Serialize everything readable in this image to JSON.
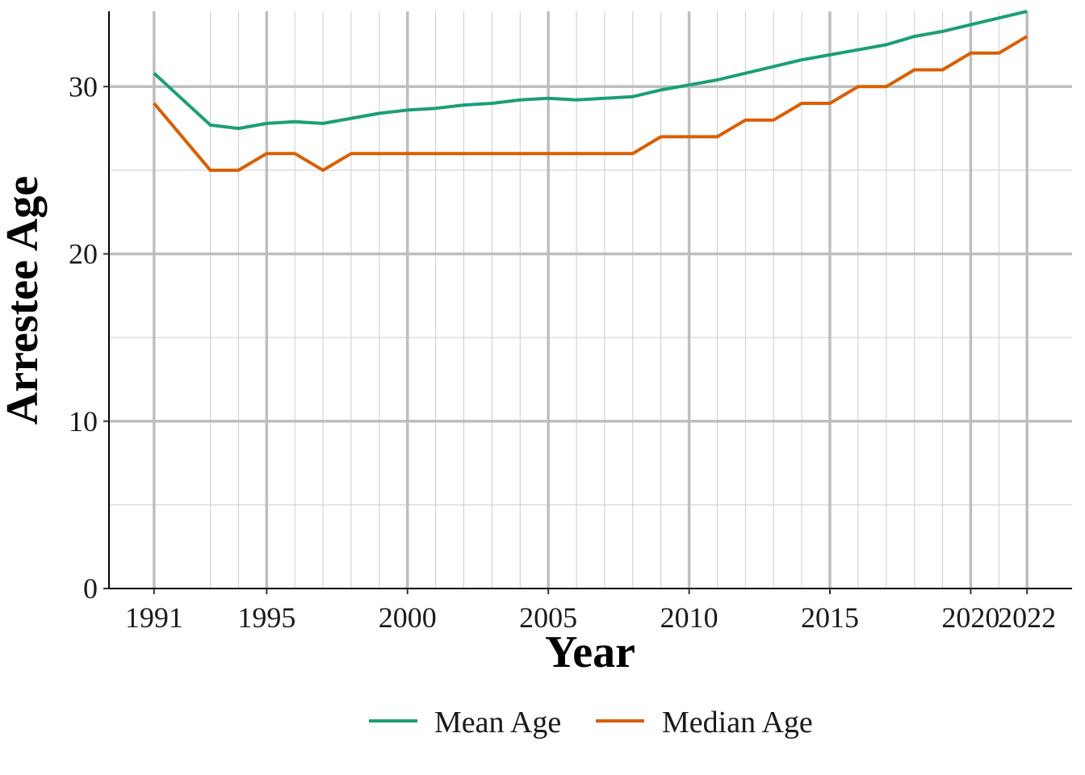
{
  "chart_data": {
    "type": "line",
    "title": "",
    "xlabel": "Year",
    "ylabel": "Arrestee Age",
    "x": [
      1991,
      1993,
      1994,
      1995,
      1996,
      1997,
      1998,
      1999,
      2000,
      2001,
      2002,
      2003,
      2004,
      2005,
      2006,
      2007,
      2008,
      2009,
      2010,
      2011,
      2012,
      2013,
      2014,
      2015,
      2016,
      2017,
      2018,
      2019,
      2020,
      2021,
      2022
    ],
    "series": [
      {
        "name": "Mean Age",
        "color": "#1b9e77",
        "values": [
          30.8,
          27.7,
          27.5,
          27.8,
          27.9,
          27.8,
          28.1,
          28.4,
          28.6,
          28.7,
          28.9,
          29.0,
          29.2,
          29.3,
          29.2,
          29.3,
          29.4,
          29.8,
          30.1,
          30.4,
          30.8,
          31.2,
          31.6,
          31.9,
          32.2,
          32.5,
          33.0,
          33.3,
          33.7,
          34.1,
          34.5
        ]
      },
      {
        "name": "Median Age",
        "color": "#d95f02",
        "values": [
          29,
          25,
          25,
          26,
          26,
          25,
          26,
          26,
          26,
          26,
          26,
          26,
          26,
          26,
          26,
          26,
          26,
          27,
          27,
          27,
          28,
          28,
          29,
          29,
          30,
          30,
          31,
          31,
          32,
          32,
          33
        ]
      }
    ],
    "xticks": [
      1991,
      1995,
      2000,
      2005,
      2010,
      2015,
      2020,
      2022
    ],
    "yticks": [
      0,
      10,
      20,
      30
    ],
    "xlim": [
      1989.4,
      2023.6
    ],
    "ylim": [
      0,
      34.5
    ],
    "grid": true,
    "legend": "bottom"
  }
}
